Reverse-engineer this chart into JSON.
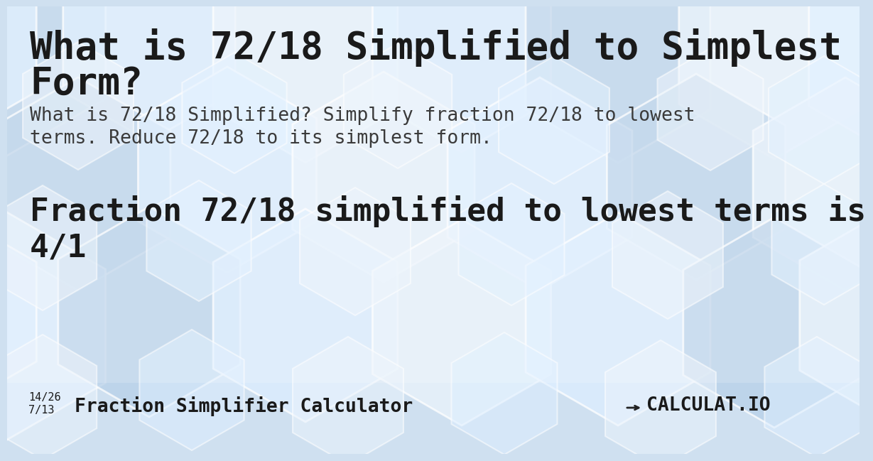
{
  "title_line1": "What is 72/18 Simplified to Simplest",
  "title_line2": "Form?",
  "subtitle_line1": "What is 72/18 Simplified? Simplify fraction 72/18 to lowest",
  "subtitle_line2": "terms. Reduce 72/18 to its simplest form.",
  "answer_line1": "Fraction 72/18 simplified to lowest terms is",
  "answer_line2": "4/1",
  "footer_frac1": "14/26",
  "footer_frac2": "7/13",
  "footer_text": "Fraction Simplifier Calculator",
  "footer_logo": "→ CALCULAT.IO",
  "bg_base": "#cfe0f0",
  "pattern_light": "#ddeeff",
  "pattern_mid": "#b8d0e8",
  "pattern_white": "#eaf3fc",
  "pattern_edge": "#ffffff",
  "title_color": "#1a1a1a",
  "subtitle_color": "#3a3a3a",
  "answer_color": "#1a1a1a",
  "footer_color": "#1a1a1a",
  "figsize": [
    12.0,
    6.3
  ],
  "dpi": 100
}
